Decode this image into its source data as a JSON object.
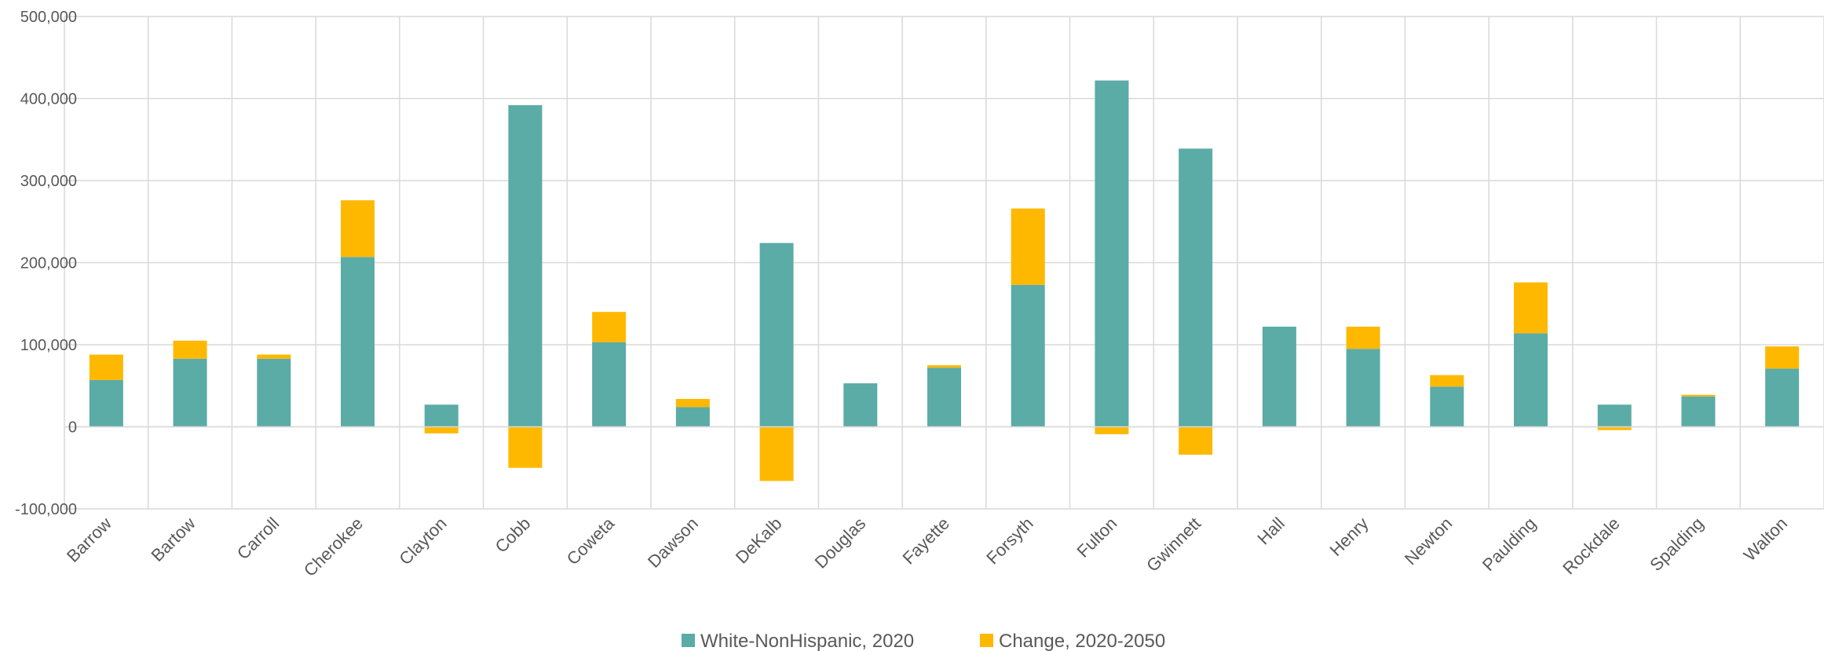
{
  "chart_data": {
    "type": "bar",
    "stacked": true,
    "categories": [
      "Barrow",
      "Bartow",
      "Carroll",
      "Cherokee",
      "Clayton",
      "Cobb",
      "Coweta",
      "Dawson",
      "DeKalb",
      "Douglas",
      "Fayette",
      "Forsyth",
      "Fulton",
      "Gwinnett",
      "Hall",
      "Henry",
      "Newton",
      "Paulding",
      "Rockdale",
      "Spalding",
      "Walton"
    ],
    "series": [
      {
        "name": "White-NonHispanic, 2020",
        "color": "#5BABA7",
        "values": [
          57000,
          83000,
          83000,
          207000,
          27000,
          392000,
          103000,
          24000,
          224000,
          53000,
          72000,
          173000,
          422000,
          339000,
          122000,
          95000,
          49000,
          114000,
          27000,
          37000,
          71000
        ]
      },
      {
        "name": "Change, 2020-2050",
        "color": "#FFB800",
        "values": [
          31000,
          22000,
          5000,
          69000,
          -8000,
          -50000,
          37000,
          10000,
          -66000,
          0,
          3000,
          93000,
          -9000,
          -34000,
          0,
          27000,
          14000,
          62000,
          -4000,
          2000,
          27000
        ]
      }
    ],
    "ylim": [
      -100000,
      500000
    ],
    "yticks": [
      -100000,
      0,
      100000,
      200000,
      300000,
      400000,
      500000
    ],
    "ytick_labels": [
      "-100,000",
      "0",
      "100,000",
      "200,000",
      "300,000",
      "400,000",
      "500,000"
    ],
    "grid": true,
    "legend_position": "bottom",
    "title": "",
    "xlabel": "",
    "ylabel": ""
  }
}
